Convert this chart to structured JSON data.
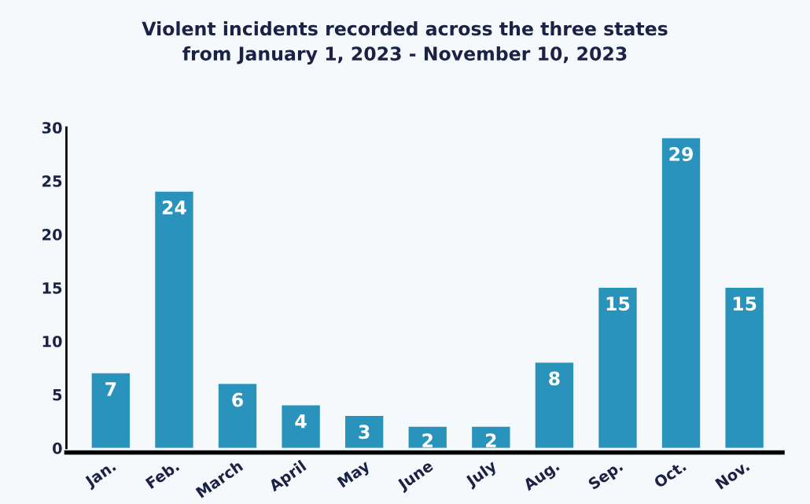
{
  "chart_data": {
    "type": "bar",
    "title": "Violent incidents recorded across the three states\nfrom January 1, 2023 - November 10, 2023",
    "categories": [
      "Jan.",
      "Feb.",
      "March",
      "April",
      "May",
      "June",
      "July",
      "Aug.",
      "Sep.",
      "Oct.",
      "Nov."
    ],
    "values": [
      7,
      24,
      6,
      4,
      3,
      2,
      2,
      8,
      15,
      29,
      15
    ],
    "color": "#2a93bb",
    "ylim": [
      0,
      30
    ],
    "yticks": [
      0,
      5,
      10,
      15,
      20,
      25,
      30
    ],
    "grid": false,
    "data_labels": true,
    "legend": false
  }
}
